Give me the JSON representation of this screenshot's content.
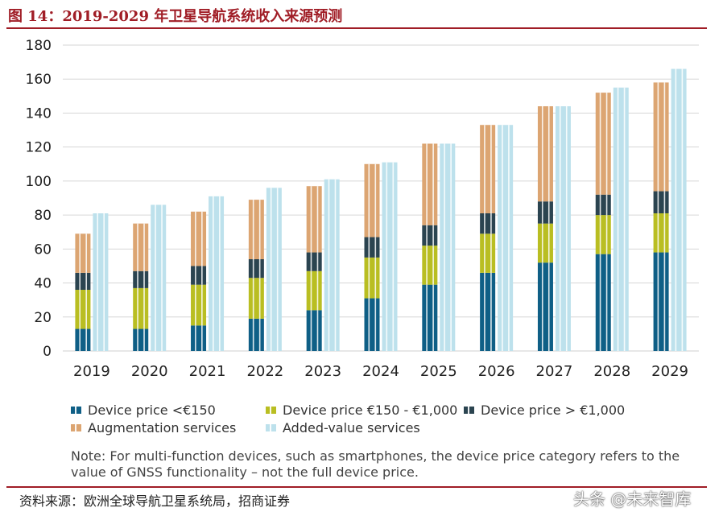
{
  "figure_title": "图 14：2019-2029 年卫星导航系统收入来源预测",
  "source": "资料来源：欧洲全球导航卫星系统局，招商证券",
  "watermark": "头条 @未来智库",
  "note": "Note: For multi-function devices, such as smartphones, the device price category refers to the value of GNSS functionality – not the full device price.",
  "legend": [
    {
      "label": "Device price <€150",
      "color": "#0f5f86"
    },
    {
      "label": "Device price €150 - €1,000",
      "color": "#b9be22"
    },
    {
      "label": "Device price > €1,000",
      "color": "#2b4450"
    },
    {
      "label": "Augmentation services",
      "color": "#dca572"
    },
    {
      "label": "Added-value services",
      "color": "#bde1ec"
    }
  ],
  "chart_data": {
    "type": "bar",
    "stacked_group": "device + augmentation (left bar), added-value services (right bar)",
    "categories": [
      "2019",
      "2020",
      "2021",
      "2022",
      "2023",
      "2024",
      "2025",
      "2026",
      "2027",
      "2028",
      "2029"
    ],
    "series": [
      {
        "name": "Device price <€150",
        "color": "#0f5f86",
        "values": [
          13,
          13,
          15,
          19,
          24,
          31,
          39,
          46,
          52,
          57,
          58
        ]
      },
      {
        "name": "Device price €150 - €1,000",
        "color": "#b9be22",
        "values": [
          23,
          24,
          24,
          24,
          23,
          24,
          23,
          23,
          23,
          23,
          23
        ]
      },
      {
        "name": "Device price > €1,000",
        "color": "#2b4450",
        "values": [
          10,
          10,
          11,
          11,
          11,
          12,
          12,
          12,
          13,
          12,
          13
        ]
      },
      {
        "name": "Augmentation services",
        "color": "#dca572",
        "values": [
          23,
          28,
          32,
          35,
          39,
          43,
          48,
          52,
          56,
          60,
          64
        ]
      },
      {
        "name": "Added-value services",
        "color": "#bde1ec",
        "values": [
          81,
          86,
          91,
          96,
          101,
          111,
          122,
          133,
          144,
          155,
          166
        ]
      }
    ],
    "yticks": [
      0,
      20,
      40,
      60,
      80,
      100,
      120,
      140,
      160,
      180
    ],
    "ylim": [
      0,
      180
    ],
    "xlabel": "",
    "ylabel": "",
    "grid": "horizontal",
    "legend_position": "bottom"
  }
}
